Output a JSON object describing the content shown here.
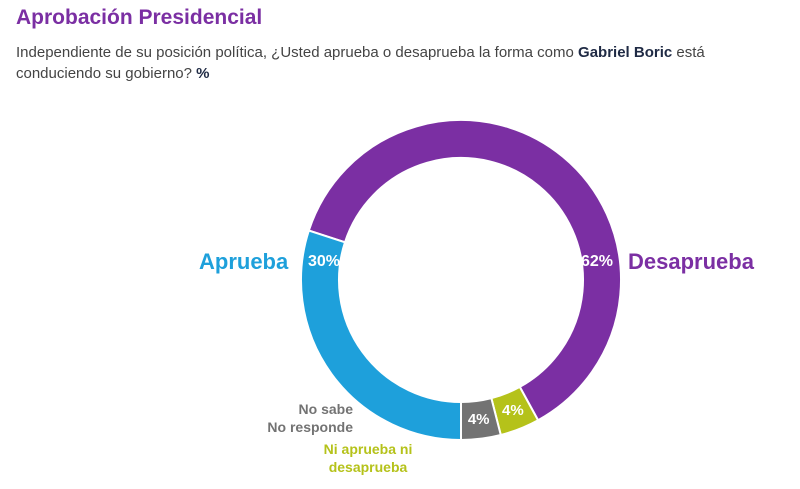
{
  "header": {
    "title": "Aprobación Presidencial",
    "subtitle_before": "Independiente de su posición política, ¿Usted aprueba o desaprueba la forma como ",
    "subtitle_bold": "Gabriel Boric",
    "subtitle_after": " está conduciendo su gobierno? ",
    "subtitle_unit": "%"
  },
  "chart_data": {
    "type": "pie",
    "title": "Aprobación Presidencial",
    "start_category": "Desaprueba",
    "direction": "clockwise",
    "categories": [
      "Desaprueba",
      "Ni aprueba ni desaprueba",
      "No sabe No responde",
      "Aprueba"
    ],
    "values": [
      62,
      4,
      4,
      30
    ],
    "value_labels": [
      "62%",
      "4%",
      "4%",
      "30%"
    ],
    "colors": [
      "#7b2fa3",
      "#b5c21a",
      "#737373",
      "#1ea0db"
    ]
  },
  "labels": {
    "aprueba": "Aprueba",
    "desaprueba": "Desaprueba",
    "no_sabe_line1": "No sabe",
    "no_sabe_line2": "No responde",
    "ni_line1": "Ni aprueba ni",
    "ni_line2": "desaprueba"
  },
  "colors": {
    "title": "#7b2fa3",
    "aprueba": "#1ea0db",
    "desaprueba": "#7b2fa3",
    "no_sabe": "#737373",
    "ni": "#b5c21a"
  }
}
